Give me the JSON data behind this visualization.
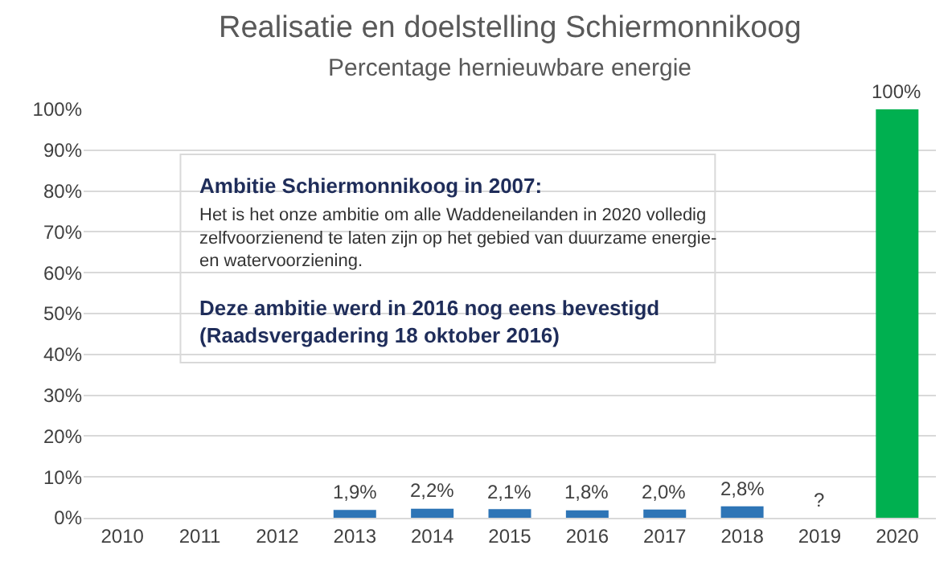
{
  "chart_data": {
    "type": "bar",
    "title": "Realisatie en doelstelling Schiermonnikoog",
    "subtitle": "Percentage hernieuwbare energie",
    "categories": [
      "2010",
      "2011",
      "2012",
      "2013",
      "2014",
      "2015",
      "2016",
      "2017",
      "2018",
      "2019",
      "2020"
    ],
    "values": [
      null,
      null,
      null,
      1.9,
      2.2,
      2.1,
      1.8,
      2.0,
      2.8,
      null,
      100
    ],
    "colors": [
      "#2e75b6",
      "#2e75b6",
      "#2e75b6",
      "#2e75b6",
      "#2e75b6",
      "#2e75b6",
      "#2e75b6",
      "#2e75b6",
      "#2e75b6",
      "#2e75b6",
      "#00b050"
    ],
    "value_labels": [
      null,
      null,
      null,
      "1,9%",
      "2,2%",
      "2,1%",
      "1,8%",
      "2,0%",
      "2,8%",
      "?",
      "100%"
    ],
    "ylim": [
      0,
      100
    ],
    "yticks": [
      {
        "value": 0,
        "label": "0%"
      },
      {
        "value": 10,
        "label": "10%"
      },
      {
        "value": 20,
        "label": "20%"
      },
      {
        "value": 30,
        "label": "30%"
      },
      {
        "value": 40,
        "label": "40%"
      },
      {
        "value": 50,
        "label": "50%"
      },
      {
        "value": 60,
        "label": "60%"
      },
      {
        "value": 70,
        "label": "70%"
      },
      {
        "value": 80,
        "label": "80%"
      },
      {
        "value": 90,
        "label": "90%"
      },
      {
        "value": 100,
        "label": "100%"
      }
    ],
    "grid": "y",
    "annotations": [
      "Ambitie Schiermonnikoog in 2007:",
      "Het is het onze ambitie om alle Waddeneilanden in 2020 volledig\nzelfvoorzienend te laten zijn op het gebied van duurzame energie-\nen watervoorziening.",
      "Deze ambitie werd in 2016 nog eens bevestigd\n(Raadsvergadering 18 oktober 2016)"
    ]
  }
}
